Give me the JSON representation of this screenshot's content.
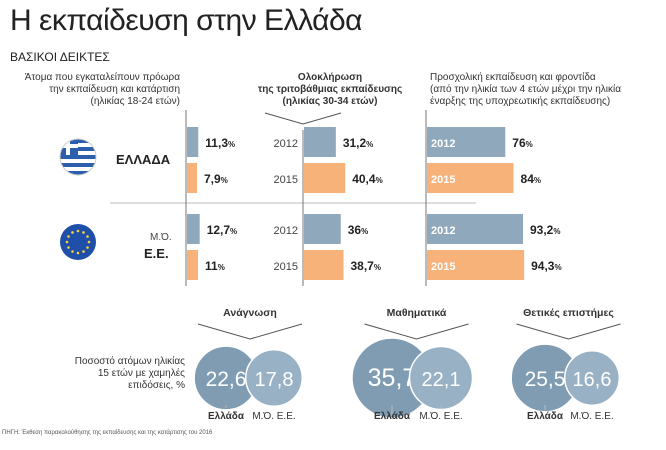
{
  "title": "Η εκπαίδευση στην Ελλάδα",
  "subtitle": "ΒΑΣΙΚΟΙ ΔΕΙΚΤΕΣ",
  "source": "ΠΗΓΗ: Έκθεση παρακολούθησης της εκπαίδευσης και της κατάρτισης του 2016",
  "colors": {
    "y2012": "#8fa8bb",
    "y2015": "#f7b27a",
    "circle_greece": "#7f9cb3",
    "circle_eu": "#98b1c4"
  },
  "chart_data": [
    {
      "type": "bar",
      "title": "Άτομα που εγκαταλείπουν πρόωρα την εκπαίδευση και κατάρτιση (ηλικίας 18-24 ετών)",
      "title_lines": [
        "Άτομα που εγκαταλείπουν πρόωρα",
        "την εκπαίδευση και κατάρτιση",
        "(ηλικίας 18-24 ετών)"
      ],
      "categories": [
        "ΕΛΛΑΔΑ",
        "Μ.Ό. Ε.Ε."
      ],
      "series": [
        {
          "name": "2012",
          "values": [
            11.3,
            12.7
          ],
          "labels": [
            "11,3",
            "12,7"
          ]
        },
        {
          "name": "2015",
          "values": [
            7.9,
            11
          ],
          "labels": [
            "7,9",
            "11"
          ]
        }
      ],
      "unit": "%"
    },
    {
      "type": "bar",
      "title": "Ολοκλήρωση της τριτοβάθμιας εκπαίδευσης (ηλικίας 30-34 ετών)",
      "title_lines": [
        "Ολοκλήρωση",
        "της τριτοβάθμιας εκπαίδευσης",
        "(ηλικίας 30-34 ετών)"
      ],
      "categories": [
        "ΕΛΛΑΔΑ",
        "Μ.Ό. Ε.Ε."
      ],
      "series": [
        {
          "name": "2012",
          "values": [
            31.2,
            36
          ],
          "labels": [
            "31,2",
            "36"
          ]
        },
        {
          "name": "2015",
          "values": [
            40.4,
            38.7
          ],
          "labels": [
            "40,4",
            "38,7"
          ]
        }
      ],
      "unit": "%"
    },
    {
      "type": "bar",
      "title": "Προσχολική εκπαίδευση και φροντίδα (από την ηλικία των 4 ετών μέχρι την ηλικία έναρξης της υποχρεωτικής εκπαίδευσης)",
      "title_lines": [
        "Προσχολική εκπαίδευση και φροντίδα",
        "(από την ηλικία των 4 ετών μέχρι την ηλικία",
        "έναρξης της υποχρεωτικής εκπαίδευσης)"
      ],
      "categories": [
        "ΕΛΛΑΔΑ",
        "Μ.Ό. Ε.Ε."
      ],
      "series": [
        {
          "name": "2012",
          "values": [
            76,
            93.2
          ],
          "labels": [
            "76",
            "93,2"
          ]
        },
        {
          "name": "2015",
          "values": [
            84,
            94.3
          ],
          "labels": [
            "84",
            "94,3"
          ]
        }
      ],
      "unit": "%"
    },
    {
      "type": "bubble",
      "title_lines": [
        "Ποσοστό ατόμων ηλικίας",
        "15 ετών με χαμηλές",
        "επιδόσεις, %"
      ],
      "groups": [
        {
          "name": "Ανάγνωση",
          "items": [
            {
              "label": "Ελλάδα",
              "value": 22.6,
              "text": "22,6"
            },
            {
              "label": "Μ.Ό. Ε.Ε.",
              "value": 17.8,
              "text": "17,8"
            }
          ]
        },
        {
          "name": "Μαθηματικά",
          "items": [
            {
              "label": "Ελλάδα",
              "value": 35.7,
              "text": "35,7"
            },
            {
              "label": "Μ.Ό. Ε.Ε.",
              "value": 22.1,
              "text": "22,1"
            }
          ]
        },
        {
          "name": "Θετικές επιστήμες",
          "items": [
            {
              "label": "Ελλάδα",
              "value": 25.5,
              "text": "25,5"
            },
            {
              "label": "Μ.Ό. Ε.Ε.",
              "value": 16.6,
              "text": "16,6"
            }
          ]
        }
      ]
    }
  ],
  "row_labels": {
    "greece": "ΕΛΛΑΔΑ",
    "eu_line1": "Μ.Ό.",
    "eu_line2": "Ε.Ε."
  },
  "icons": {
    "greece": "greek-flag-icon",
    "eu": "eu-flag-icon"
  }
}
